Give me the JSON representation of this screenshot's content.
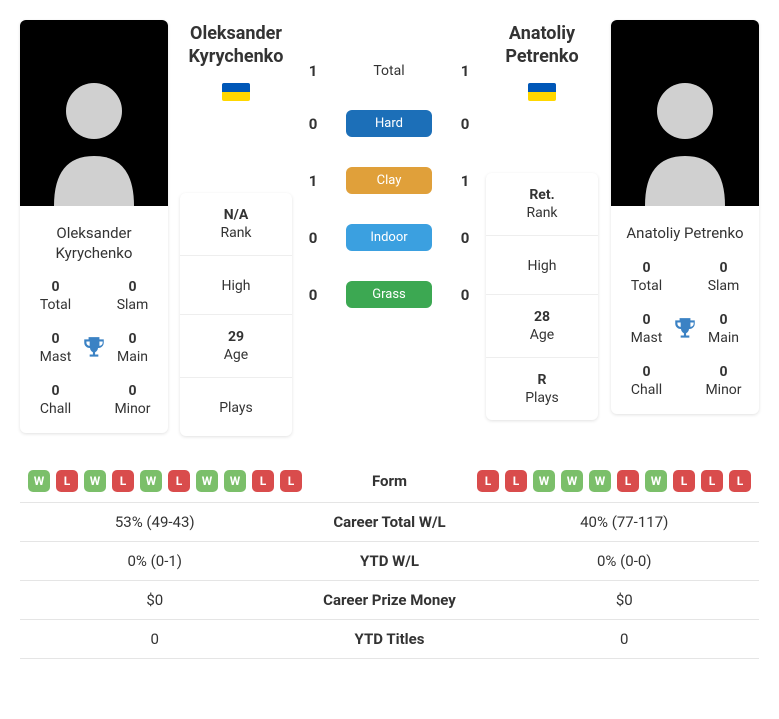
{
  "colors": {
    "win_badge": "#7bbf6a",
    "loss_badge": "#d94c4c",
    "trophy": "#3b82c4",
    "silhouette": "#d0d0d0",
    "hard": "#1c6fb8",
    "clay": "#e0a03a",
    "indoor": "#3ba0e0",
    "grass": "#3ca852"
  },
  "surfaces": {
    "total": {
      "label": "Total",
      "p1": "1",
      "p2": "1",
      "pill": false
    },
    "hard": {
      "label": "Hard",
      "p1": "0",
      "p2": "0",
      "color_key": "hard"
    },
    "clay": {
      "label": "Clay",
      "p1": "1",
      "p2": "1",
      "color_key": "clay"
    },
    "indoor": {
      "label": "Indoor",
      "p1": "0",
      "p2": "0",
      "color_key": "indoor"
    },
    "grass": {
      "label": "Grass",
      "p1": "0",
      "p2": "0",
      "color_key": "grass"
    }
  },
  "p1": {
    "name": "Oleksander Kyrychenko",
    "header_name": "Oleksander Kyrychenko",
    "flag": "ua",
    "titles": {
      "total": "0",
      "total_label": "Total",
      "slam": "0",
      "slam_label": "Slam",
      "mast": "0",
      "mast_label": "Mast",
      "main": "0",
      "main_label": "Main",
      "chall": "0",
      "chall_label": "Chall",
      "minor": "0",
      "minor_label": "Minor"
    },
    "rank": {
      "current": "N/A",
      "current_label": "Rank",
      "high_label": "High",
      "age": "29",
      "age_label": "Age",
      "plays_label": "Plays"
    },
    "form": [
      "W",
      "L",
      "W",
      "L",
      "W",
      "L",
      "W",
      "W",
      "L",
      "L"
    ],
    "career_wl": "53% (49-43)",
    "ytd_wl": "0% (0-1)",
    "prize": "$0",
    "ytd_titles": "0"
  },
  "p2": {
    "name": "Anatoliy Petrenko",
    "header_name": "Anatoliy Petrenko",
    "flag": "ua",
    "titles": {
      "total": "0",
      "total_label": "Total",
      "slam": "0",
      "slam_label": "Slam",
      "mast": "0",
      "mast_label": "Mast",
      "main": "0",
      "main_label": "Main",
      "chall": "0",
      "chall_label": "Chall",
      "minor": "0",
      "minor_label": "Minor"
    },
    "rank": {
      "current": "Ret.",
      "current_label": "Rank",
      "high_label": "High",
      "age": "28",
      "age_label": "Age",
      "plays": "R",
      "plays_label": "Plays"
    },
    "form": [
      "L",
      "L",
      "W",
      "W",
      "W",
      "L",
      "W",
      "L",
      "L",
      "L"
    ],
    "career_wl": "40% (77-117)",
    "ytd_wl": "0% (0-0)",
    "prize": "$0",
    "ytd_titles": "0"
  },
  "compare_labels": {
    "form": "Form",
    "career_wl": "Career Total W/L",
    "ytd_wl": "YTD W/L",
    "prize": "Career Prize Money",
    "ytd_titles": "YTD Titles"
  }
}
